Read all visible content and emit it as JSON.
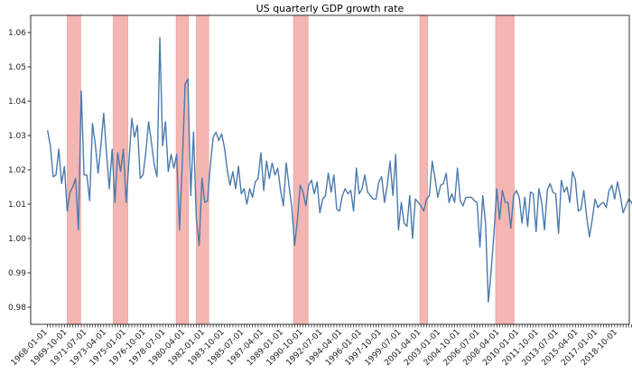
{
  "chart_data": {
    "type": "line",
    "title": "US quarterly GDP growth rate",
    "xlabel": "",
    "ylabel": "",
    "ylim": [
      0.975,
      1.065
    ],
    "xlim": [
      1966.5,
      2019.8
    ],
    "y_ticks": [
      0.98,
      0.99,
      1.0,
      1.01,
      1.02,
      1.03,
      1.04,
      1.05,
      1.06
    ],
    "y_tick_labels": [
      "0.98",
      "0.99",
      "1.00",
      "1.01",
      "1.02",
      "1.03",
      "1.04",
      "1.05",
      "1.06"
    ],
    "x_tick_labels": [
      "1968-01-01",
      "1969-10-01",
      "1971-07-01",
      "1973-04-01",
      "1975-01-01",
      "1976-10-01",
      "1978-07-01",
      "1980-04-01",
      "1982-01-01",
      "1983-10-01",
      "1985-07-01",
      "1987-04-01",
      "1989-01-01",
      "1990-10-01",
      "1992-07-01",
      "1994-04-01",
      "1996-01-01",
      "1997-10-01",
      "1999-07-01",
      "2001-04-01",
      "2003-01-01",
      "2004-10-01",
      "2006-07-01",
      "2008-04-01",
      "2010-01-01",
      "2011-10-01",
      "2013-07-01",
      "2015-04-01",
      "2017-01-01",
      "2018-10-01"
    ],
    "grid": false,
    "colors": {
      "line": "#4a7aad",
      "recession": "#f4b6b3",
      "recession_edge": "#e89994"
    },
    "recessions": [
      {
        "start": 1969.75,
        "end": 1970.95
      },
      {
        "start": 1973.85,
        "end": 1975.15
      },
      {
        "start": 1979.45,
        "end": 1980.55
      },
      {
        "start": 1981.25,
        "end": 1982.35
      },
      {
        "start": 1989.9,
        "end": 1991.2
      },
      {
        "start": 2001.15,
        "end": 2001.85
      },
      {
        "start": 2007.9,
        "end": 2009.55
      }
    ],
    "series": [
      {
        "name": "",
        "x_start": 1968.0,
        "step": 0.25,
        "values": [
          1.0315,
          1.027,
          1.018,
          1.0185,
          1.026,
          1.016,
          1.021,
          1.008,
          1.0135,
          1.015,
          1.0175,
          1.0025,
          1.043,
          1.0185,
          1.0185,
          1.011,
          1.0335,
          1.0275,
          1.019,
          1.027,
          1.0365,
          1.025,
          1.0145,
          1.026,
          1.0105,
          1.025,
          1.0195,
          1.026,
          1.0105,
          1.0225,
          1.035,
          1.0295,
          1.033,
          1.0175,
          1.0185,
          1.025,
          1.034,
          1.028,
          1.0215,
          1.018,
          1.0585,
          1.027,
          1.034,
          1.0195,
          1.0245,
          1.0205,
          1.0245,
          1.0025,
          1.0215,
          1.045,
          1.0465,
          1.0125,
          1.031,
          1.0055,
          0.998,
          1.0175,
          1.0105,
          1.011,
          1.0215,
          1.0295,
          1.031,
          1.0285,
          1.0305,
          1.0265,
          1.02,
          1.0155,
          1.0195,
          1.0145,
          1.021,
          1.013,
          1.0145,
          1.01,
          1.0145,
          1.012,
          1.0165,
          1.0175,
          1.025,
          1.014,
          1.0225,
          1.0175,
          1.022,
          1.0185,
          1.0205,
          1.014,
          1.0095,
          1.022,
          1.0155,
          1.009,
          0.998,
          1.0055,
          1.0155,
          1.0135,
          1.0095,
          1.0155,
          1.017,
          1.013,
          1.0165,
          1.0075,
          1.0115,
          1.0125,
          1.019,
          1.0135,
          1.0185,
          1.0085,
          1.008,
          1.0125,
          1.0145,
          1.013,
          1.014,
          1.008,
          1.0205,
          1.013,
          1.0145,
          1.0185,
          1.0135,
          1.0125,
          1.0115,
          1.0115,
          1.0165,
          1.018,
          1.0105,
          1.0155,
          1.0225,
          1.0125,
          1.0245,
          1.0025,
          1.0105,
          1.0045,
          1.0035,
          1.0125,
          1.0,
          1.0115,
          1.0105,
          1.0095,
          1.008,
          1.0115,
          1.0125,
          1.0225,
          1.0175,
          1.012,
          1.0155,
          1.016,
          1.019,
          1.0105,
          1.013,
          1.0105,
          1.0205,
          1.011,
          1.0095,
          1.012,
          1.012,
          1.012,
          1.011,
          1.0105,
          0.9975,
          1.0125,
          1.0045,
          0.9815,
          0.9905,
          1.0015,
          1.0145,
          1.0055,
          1.014,
          1.0105,
          1.0105,
          1.003,
          1.0125,
          1.014,
          1.012,
          1.0045,
          1.012,
          1.0035,
          1.0135,
          1.013,
          1.002,
          1.0145,
          1.0105,
          1.0025,
          1.014,
          1.016,
          1.0135,
          1.013,
          1.0015,
          1.017,
          1.0135,
          1.015,
          1.0105,
          1.0195,
          1.017,
          1.008,
          1.0085,
          1.014,
          1.0065,
          1.0005,
          1.0055,
          1.0115,
          1.009,
          1.01,
          1.0105,
          1.009,
          1.014,
          1.0155,
          1.0115,
          1.0165,
          1.0125,
          1.0075,
          1.0095,
          1.0115,
          1.0105,
          1.0085
        ]
      }
    ]
  }
}
